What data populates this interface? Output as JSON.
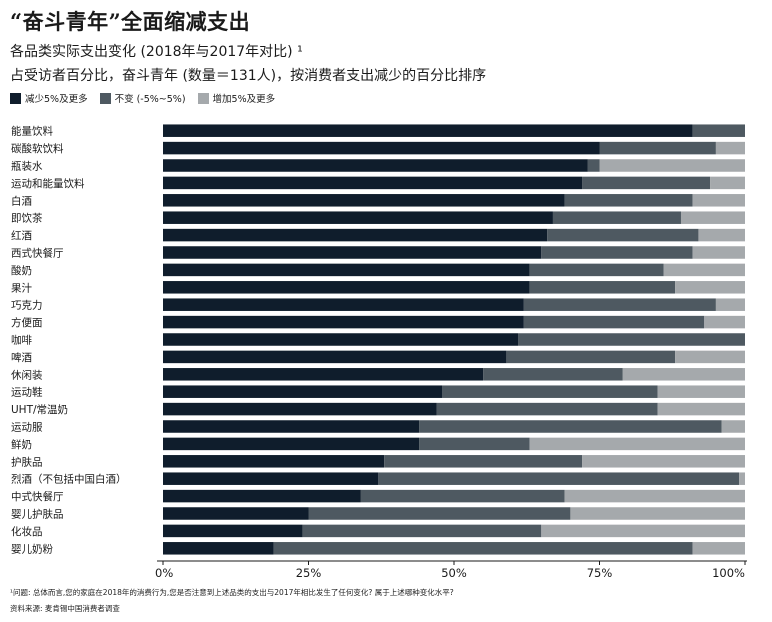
{
  "title": "“奋斗青年”全面缩减支出",
  "subtitle1": "各品类实际支出变化 (2018年与2017年对比) ¹",
  "subtitle2": "占受访者百分比，奋斗青年 (数量＝131人)，按消费者支出减少的百分比排序",
  "legend": [
    {
      "label": "减少5%及更多",
      "color": "#0f1d2c"
    },
    {
      "label": "不变 (-5%~5%)",
      "color": "#4e5961"
    },
    {
      "label": "增加5%及更多",
      "color": "#a5a9ac"
    }
  ],
  "footnote1": "¹问题: 总体而言,您的家庭在2018年的消费行为,您是否注意到上述品类的支出与2017年相比发生了任何变化? 属于上述哪种变化水平?",
  "footnote2": "资料来源: 麦肯锡中国消费者调查",
  "chart_data": {
    "type": "bar",
    "orientation": "horizontal",
    "stacked": true,
    "xlim": [
      0,
      100
    ],
    "xticks": [
      "0%",
      "25%",
      "50%",
      "75%",
      "100%"
    ],
    "categories": [
      "能量饮料",
      "碳酸软饮料",
      "瓶装水",
      "运动和能量饮料",
      "白酒",
      "即饮茶",
      "红酒",
      "西式快餐厅",
      "酸奶",
      "果汁",
      "巧克力",
      "方便面",
      "咖啡",
      "啤酒",
      "休闲装",
      "运动鞋",
      "UHT/常温奶",
      "运动服",
      "鲜奶",
      "护肤品",
      "烈酒（不包括中国白酒）",
      "中式快餐厅",
      "婴儿护肤品",
      "化妆品",
      "婴儿奶粉"
    ],
    "series": [
      {
        "name": "减少5%及更多",
        "color": "#0f1d2c",
        "values": [
          91,
          75,
          73,
          72,
          69,
          67,
          66,
          65,
          63,
          63,
          62,
          62,
          61,
          59,
          55,
          48,
          47,
          44,
          44,
          38,
          37,
          34,
          25,
          24,
          19
        ]
      },
      {
        "name": "不变 (-5%~5%)",
        "color": "#4e5961",
        "values": [
          9,
          20,
          2,
          22,
          22,
          22,
          26,
          26,
          23,
          25,
          33,
          31,
          39,
          29,
          24,
          37,
          38,
          52,
          19,
          34,
          62,
          35,
          45,
          41,
          72
        ]
      },
      {
        "name": "增加5%及更多",
        "color": "#a5a9ac",
        "values": [
          0,
          5,
          25,
          6,
          9,
          11,
          8,
          9,
          14,
          12,
          5,
          7,
          0,
          12,
          21,
          15,
          15,
          4,
          37,
          28,
          1,
          31,
          30,
          35,
          9
        ]
      }
    ]
  }
}
